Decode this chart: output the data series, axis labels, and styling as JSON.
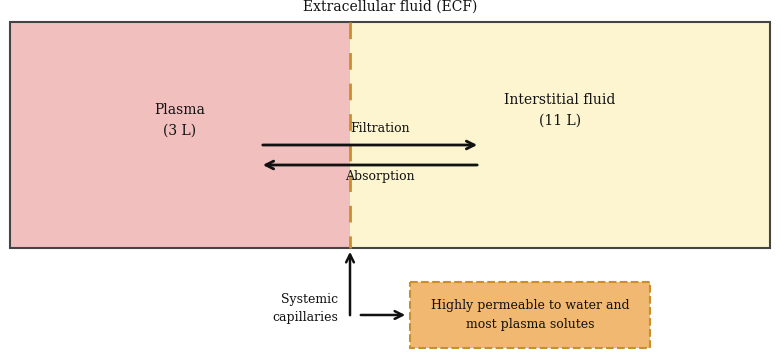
{
  "title": "Extracellular fluid (ECF)",
  "plasma_label": "Plasma\n(3 L)",
  "interstitial_label": "Interstitial fluid\n(11 L)",
  "filtration_label": "Filtration",
  "absorption_label": "Absorption",
  "systemic_label": "Systemic\ncapillaries",
  "box_label": "Highly permeable to water and\nmost plasma solutes",
  "plasma_color": "#f2bfbf",
  "interstitial_color": "#fdf5d0",
  "box_outline_color": "#c8902a",
  "box_fill_color": "#f0b870",
  "background_color": "#ffffff",
  "dashed_line_color": "#c8902a",
  "arrow_color": "#111111",
  "text_color": "#111111",
  "title_fontsize": 10,
  "label_fontsize": 10,
  "annotation_fontsize": 9
}
